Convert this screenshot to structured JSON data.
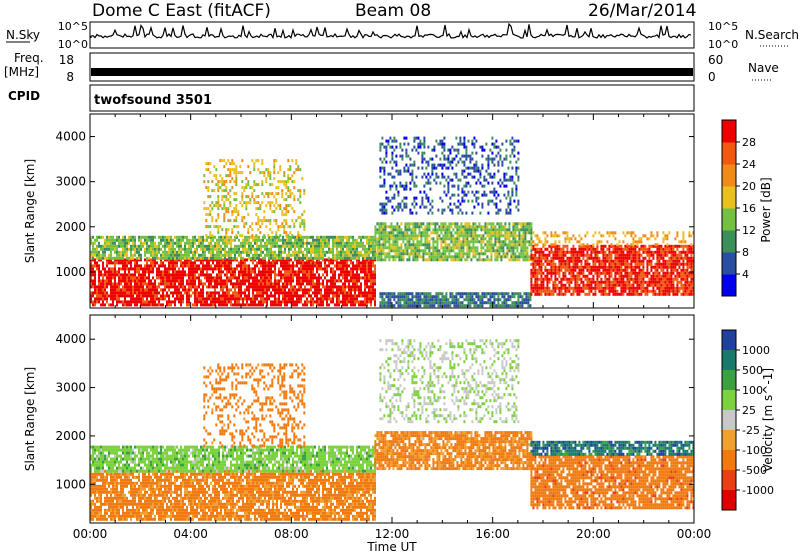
{
  "header": {
    "title": "Dome C East (fitACF)",
    "beam": "Beam 08",
    "date": "26/Mar/2014"
  },
  "strips": {
    "nsky_label": "N.Sky",
    "nsky_ticks": [
      "10^5",
      "10^0"
    ],
    "nsearch_label": "N.Search",
    "nsearch_ticks": [
      "10^5",
      "10^0"
    ],
    "freq_label": "Freq.",
    "freq_unit": "[MHz]",
    "freq_ticks": [
      "18",
      "8"
    ],
    "nave_label": "Nave",
    "nave_ticks": [
      "60",
      "0"
    ],
    "cpid_label": "CPID",
    "cpid_value": "twofsound 3501"
  },
  "colors": {
    "power": [
      "#0000ee",
      "#2a4fa0",
      "#3d8f5a",
      "#74c040",
      "#e8c020",
      "#f08a1a",
      "#f05a10",
      "#ee0000"
    ],
    "velocity": [
      "#2040a0",
      "#1a7a6a",
      "#3aa040",
      "#7cd23c",
      "#c8c8c8",
      "#f0a030",
      "#f07a10",
      "#e84010",
      "#e00000"
    ]
  },
  "chart_data": [
    {
      "type": "heatmap",
      "title": "",
      "xlabel": "Time UT",
      "ylabel": "Slant Range [km]",
      "x_ticks": [
        "00:00",
        "04:00",
        "08:00",
        "12:00",
        "16:00",
        "20:00",
        "00:00"
      ],
      "y_ticks": [
        "1000",
        "2000",
        "3000",
        "4000"
      ],
      "xlim": [
        0,
        24
      ],
      "ylim": [
        200,
        4500
      ],
      "colorbar_label": "Power [dB]",
      "colorbar_ticks": [
        "4",
        "8",
        "12",
        "16",
        "20",
        "24",
        "28"
      ],
      "colorbar_range": [
        0,
        32
      ],
      "regions": [
        {
          "t": [
            0,
            11.3
          ],
          "r": [
            300,
            1300
          ],
          "value": 30
        },
        {
          "t": [
            0,
            11.3
          ],
          "r": [
            1300,
            1800
          ],
          "value": 14
        },
        {
          "t": [
            11.3,
            17.5
          ],
          "r": [
            1300,
            2100
          ],
          "value": 14
        },
        {
          "t": [
            11.5,
            17.5
          ],
          "r": [
            250,
            550
          ],
          "value": 8
        },
        {
          "t": [
            17.5,
            24
          ],
          "r": [
            500,
            1600
          ],
          "value": 29
        },
        {
          "t": [
            17.5,
            24
          ],
          "r": [
            1600,
            1900
          ],
          "value": 20
        },
        {
          "t": [
            4.5,
            8.5
          ],
          "r": [
            1800,
            3500
          ],
          "value": 18
        },
        {
          "t": [
            11.5,
            17
          ],
          "r": [
            2300,
            4000
          ],
          "value": 6
        }
      ]
    },
    {
      "type": "heatmap",
      "title": "",
      "xlabel": "Time UT",
      "ylabel": "Slant Range [km]",
      "x_ticks": [
        "00:00",
        "04:00",
        "08:00",
        "12:00",
        "16:00",
        "20:00",
        "00:00"
      ],
      "y_ticks": [
        "1000",
        "2000",
        "3000",
        "4000"
      ],
      "xlim": [
        0,
        24
      ],
      "ylim": [
        200,
        4500
      ],
      "colorbar_label": "Velocity [m s^-1]",
      "colorbar_ticks": [
        "1000",
        "500",
        "100",
        "25",
        "-25",
        "-100",
        "-500",
        "-1000"
      ],
      "regions": [
        {
          "t": [
            0,
            11.3
          ],
          "r": [
            300,
            1300
          ],
          "value": -150
        },
        {
          "t": [
            0,
            11.3
          ],
          "r": [
            1300,
            1800
          ],
          "value": 60
        },
        {
          "t": [
            11.3,
            17.5
          ],
          "r": [
            1300,
            2100
          ],
          "value": -120
        },
        {
          "t": [
            17.5,
            24
          ],
          "r": [
            500,
            1600
          ],
          "value": -300
        },
        {
          "t": [
            17.5,
            24
          ],
          "r": [
            1600,
            1900
          ],
          "value": 700
        },
        {
          "t": [
            4.5,
            8.5
          ],
          "r": [
            1800,
            3500
          ],
          "value": -200
        },
        {
          "t": [
            11.5,
            17
          ],
          "r": [
            2300,
            4000
          ],
          "value": 20
        }
      ]
    }
  ]
}
